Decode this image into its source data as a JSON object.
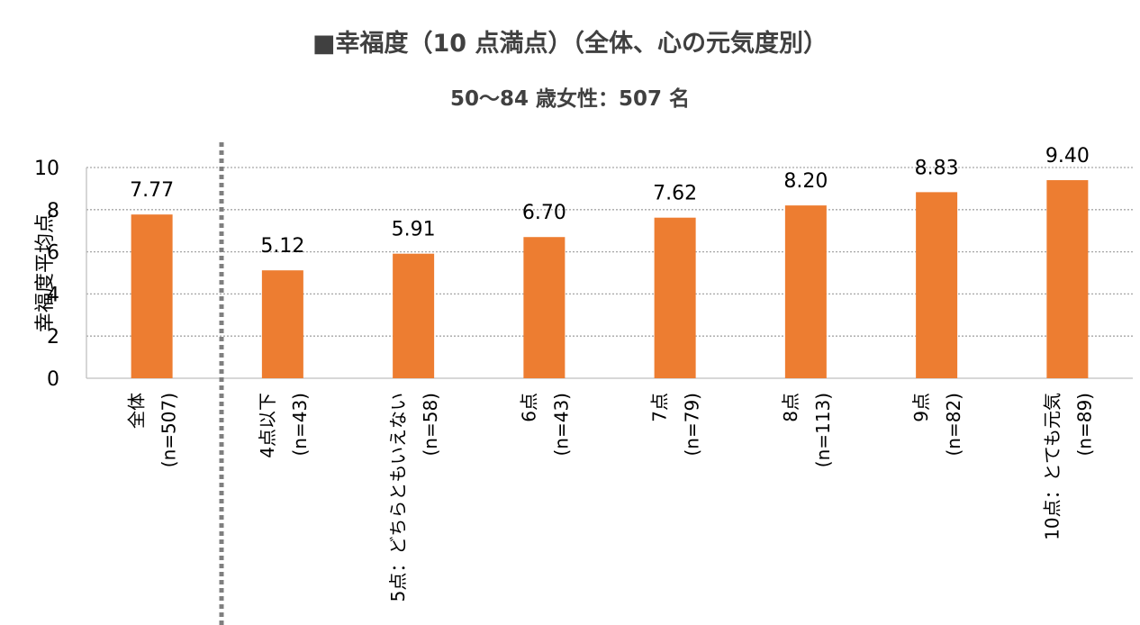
{
  "title": "■幸福度（10 点満点）（全体、心の元気度別）",
  "subtitle": "50〜84 歳女性：507 名",
  "chart_data": {
    "type": "bar",
    "title": "■幸福度（10 点満点）（全体、心の元気度別）",
    "subtitle": "50〜84 歳女性：507 名",
    "ylabel": "幸福度平均点",
    "xlabel": "",
    "ylim": [
      0,
      10
    ],
    "yticks": [
      "0",
      "2",
      "4",
      "6",
      "8",
      "10"
    ],
    "grid": true,
    "bar_color": "#ED7D31",
    "categories": [
      {
        "lines": [
          "全体",
          "(n=507)"
        ]
      },
      {
        "lines": [
          "4点以下",
          "(n=43)"
        ]
      },
      {
        "lines": [
          "5点：どちらともいえない",
          "(n=58)"
        ]
      },
      {
        "lines": [
          "6点",
          "(n=43)"
        ]
      },
      {
        "lines": [
          "7点",
          "(n=79)"
        ]
      },
      {
        "lines": [
          "8点",
          "(n=113)"
        ]
      },
      {
        "lines": [
          "9点",
          "(n=82)"
        ]
      },
      {
        "lines": [
          "10点：とても元気",
          "(n=89)"
        ]
      }
    ],
    "values": [
      7.77,
      5.12,
      5.91,
      6.7,
      7.62,
      8.2,
      8.83,
      9.4
    ],
    "data_labels": [
      "7.77",
      "5.12",
      "5.91",
      "6.70",
      "7.62",
      "8.20",
      "8.83",
      "9.40"
    ]
  }
}
